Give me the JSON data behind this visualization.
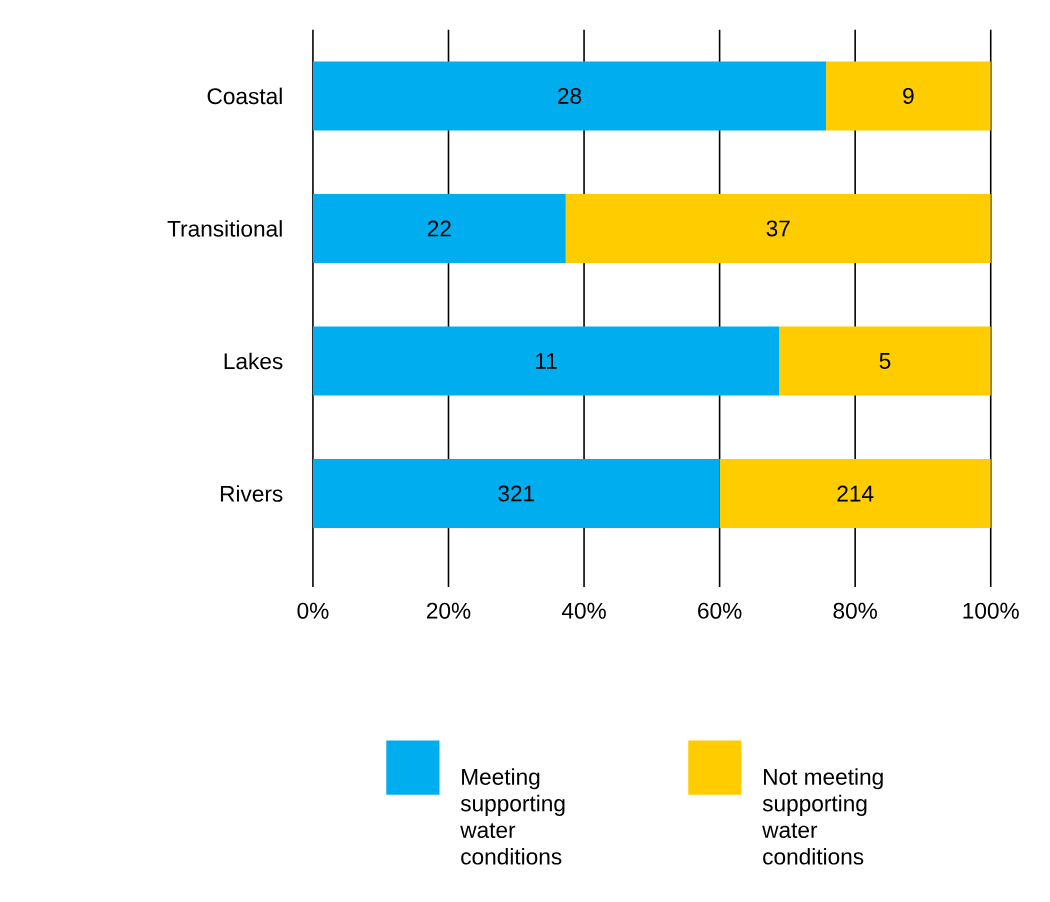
{
  "chart_data": {
    "type": "bar",
    "orientation": "horizontal",
    "stacked": true,
    "categories": [
      "Coastal",
      "Transitional",
      "Lakes",
      "Rivers"
    ],
    "series": [
      {
        "name": "Meeting supporting water conditions",
        "color": "#00aeef",
        "values": [
          75.7,
          37.3,
          68.8,
          60.0
        ]
      },
      {
        "name": "Not meeting supporting water conditions",
        "color": "#ffcc00",
        "values": [
          24.3,
          62.7,
          31.2,
          40.0
        ]
      }
    ],
    "annotations": [
      "28",
      "9",
      "22",
      "37",
      "11",
      "5",
      "321",
      "214"
    ],
    "xlim": [
      0,
      100
    ],
    "xticks": [
      {
        "value": 0,
        "label": "0%"
      },
      {
        "value": 20,
        "label": "20%"
      },
      {
        "value": 40,
        "label": "40%"
      },
      {
        "value": 60,
        "label": "60%"
      },
      {
        "value": 80,
        "label": "80%"
      },
      {
        "value": 100,
        "label": "100%"
      }
    ],
    "grid": "x",
    "legend": "bottom"
  }
}
